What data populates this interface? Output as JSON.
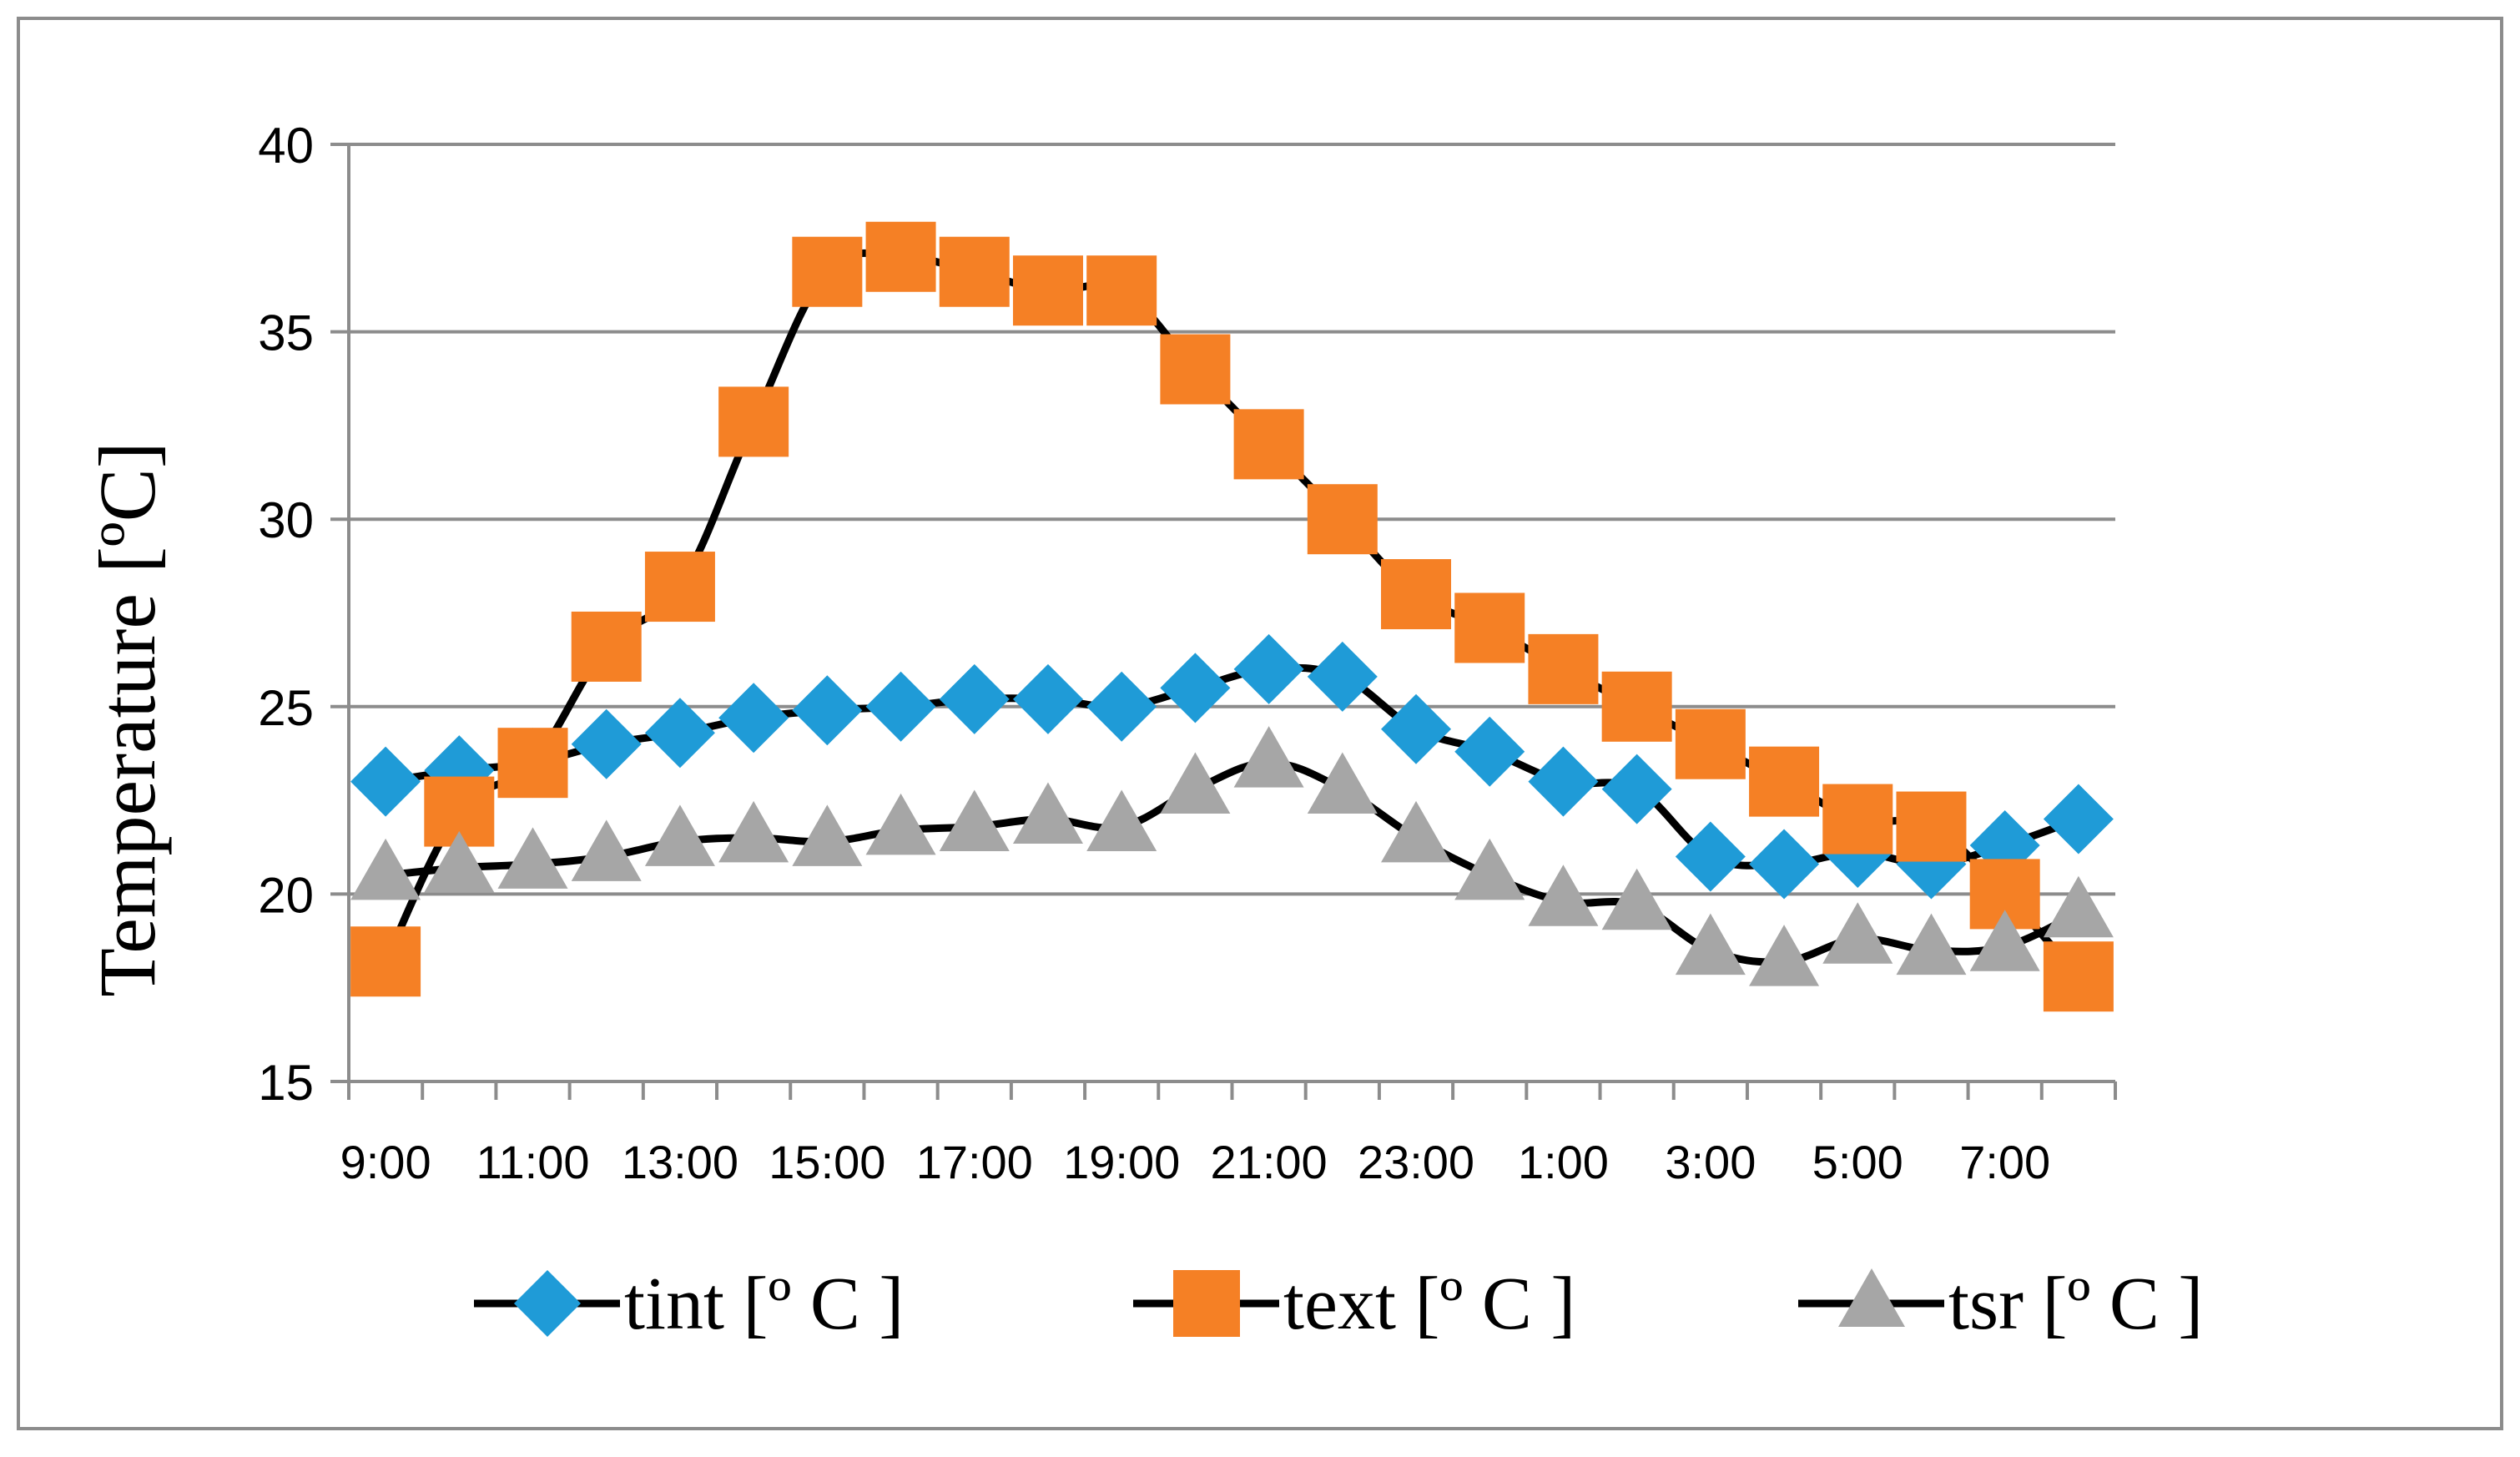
{
  "chart_data": {
    "type": "line",
    "title": "",
    "xlabel": "",
    "ylabel": "Temperature [ºC]",
    "ylim": [
      15,
      40
    ],
    "yticks": [
      15,
      20,
      25,
      30,
      35,
      40
    ],
    "grid": true,
    "legend_position": "bottom",
    "x": [
      "9:00",
      "10:00",
      "11:00",
      "12:00",
      "13:00",
      "14:00",
      "15:00",
      "16:00",
      "17:00",
      "18:00",
      "19:00",
      "20:00",
      "21:00",
      "22:00",
      "23:00",
      "0:00",
      "1:00",
      "2:00",
      "3:00",
      "4:00",
      "5:00",
      "6:00",
      "7:00",
      "8:00"
    ],
    "xtick_labels": [
      "9:00",
      "",
      "11:00",
      "",
      "13:00",
      "",
      "15:00",
      "",
      "17:00",
      "",
      "19:00",
      "",
      "21:00",
      "",
      "23:00",
      "",
      "1:00",
      "",
      "3:00",
      "",
      "5:00",
      "",
      "7:00",
      ""
    ],
    "series": [
      {
        "name": "tint [º C ]",
        "marker": "diamond",
        "marker_color": "#1f9bd7",
        "line_color": "#000000",
        "values": [
          23.0,
          23.3,
          23.5,
          24.0,
          24.3,
          24.7,
          24.9,
          25.0,
          25.2,
          25.2,
          25.0,
          25.5,
          26.0,
          25.8,
          24.4,
          23.8,
          23.0,
          22.8,
          21.0,
          20.8,
          21.1,
          20.8,
          21.3,
          22.0
        ]
      },
      {
        "name": "text [º C ]",
        "marker": "square",
        "marker_color": "#f58025",
        "line_color": "#000000",
        "values": [
          18.2,
          22.2,
          23.5,
          26.6,
          28.2,
          32.6,
          36.6,
          37.0,
          36.6,
          36.1,
          36.1,
          34.0,
          32.0,
          30.0,
          28.0,
          27.1,
          26.0,
          25.0,
          24.0,
          23.0,
          22.0,
          21.8,
          20.0,
          17.8
        ]
      },
      {
        "name": "tsr [º C ]",
        "marker": "triangle",
        "marker_color": "#a6a6a6",
        "line_color": "#000000",
        "values": [
          20.5,
          20.7,
          20.8,
          21.0,
          21.4,
          21.5,
          21.4,
          21.7,
          21.8,
          22.0,
          21.8,
          22.8,
          23.5,
          22.8,
          21.5,
          20.5,
          19.8,
          19.7,
          18.5,
          18.2,
          18.8,
          18.5,
          18.6,
          19.5
        ]
      }
    ]
  }
}
